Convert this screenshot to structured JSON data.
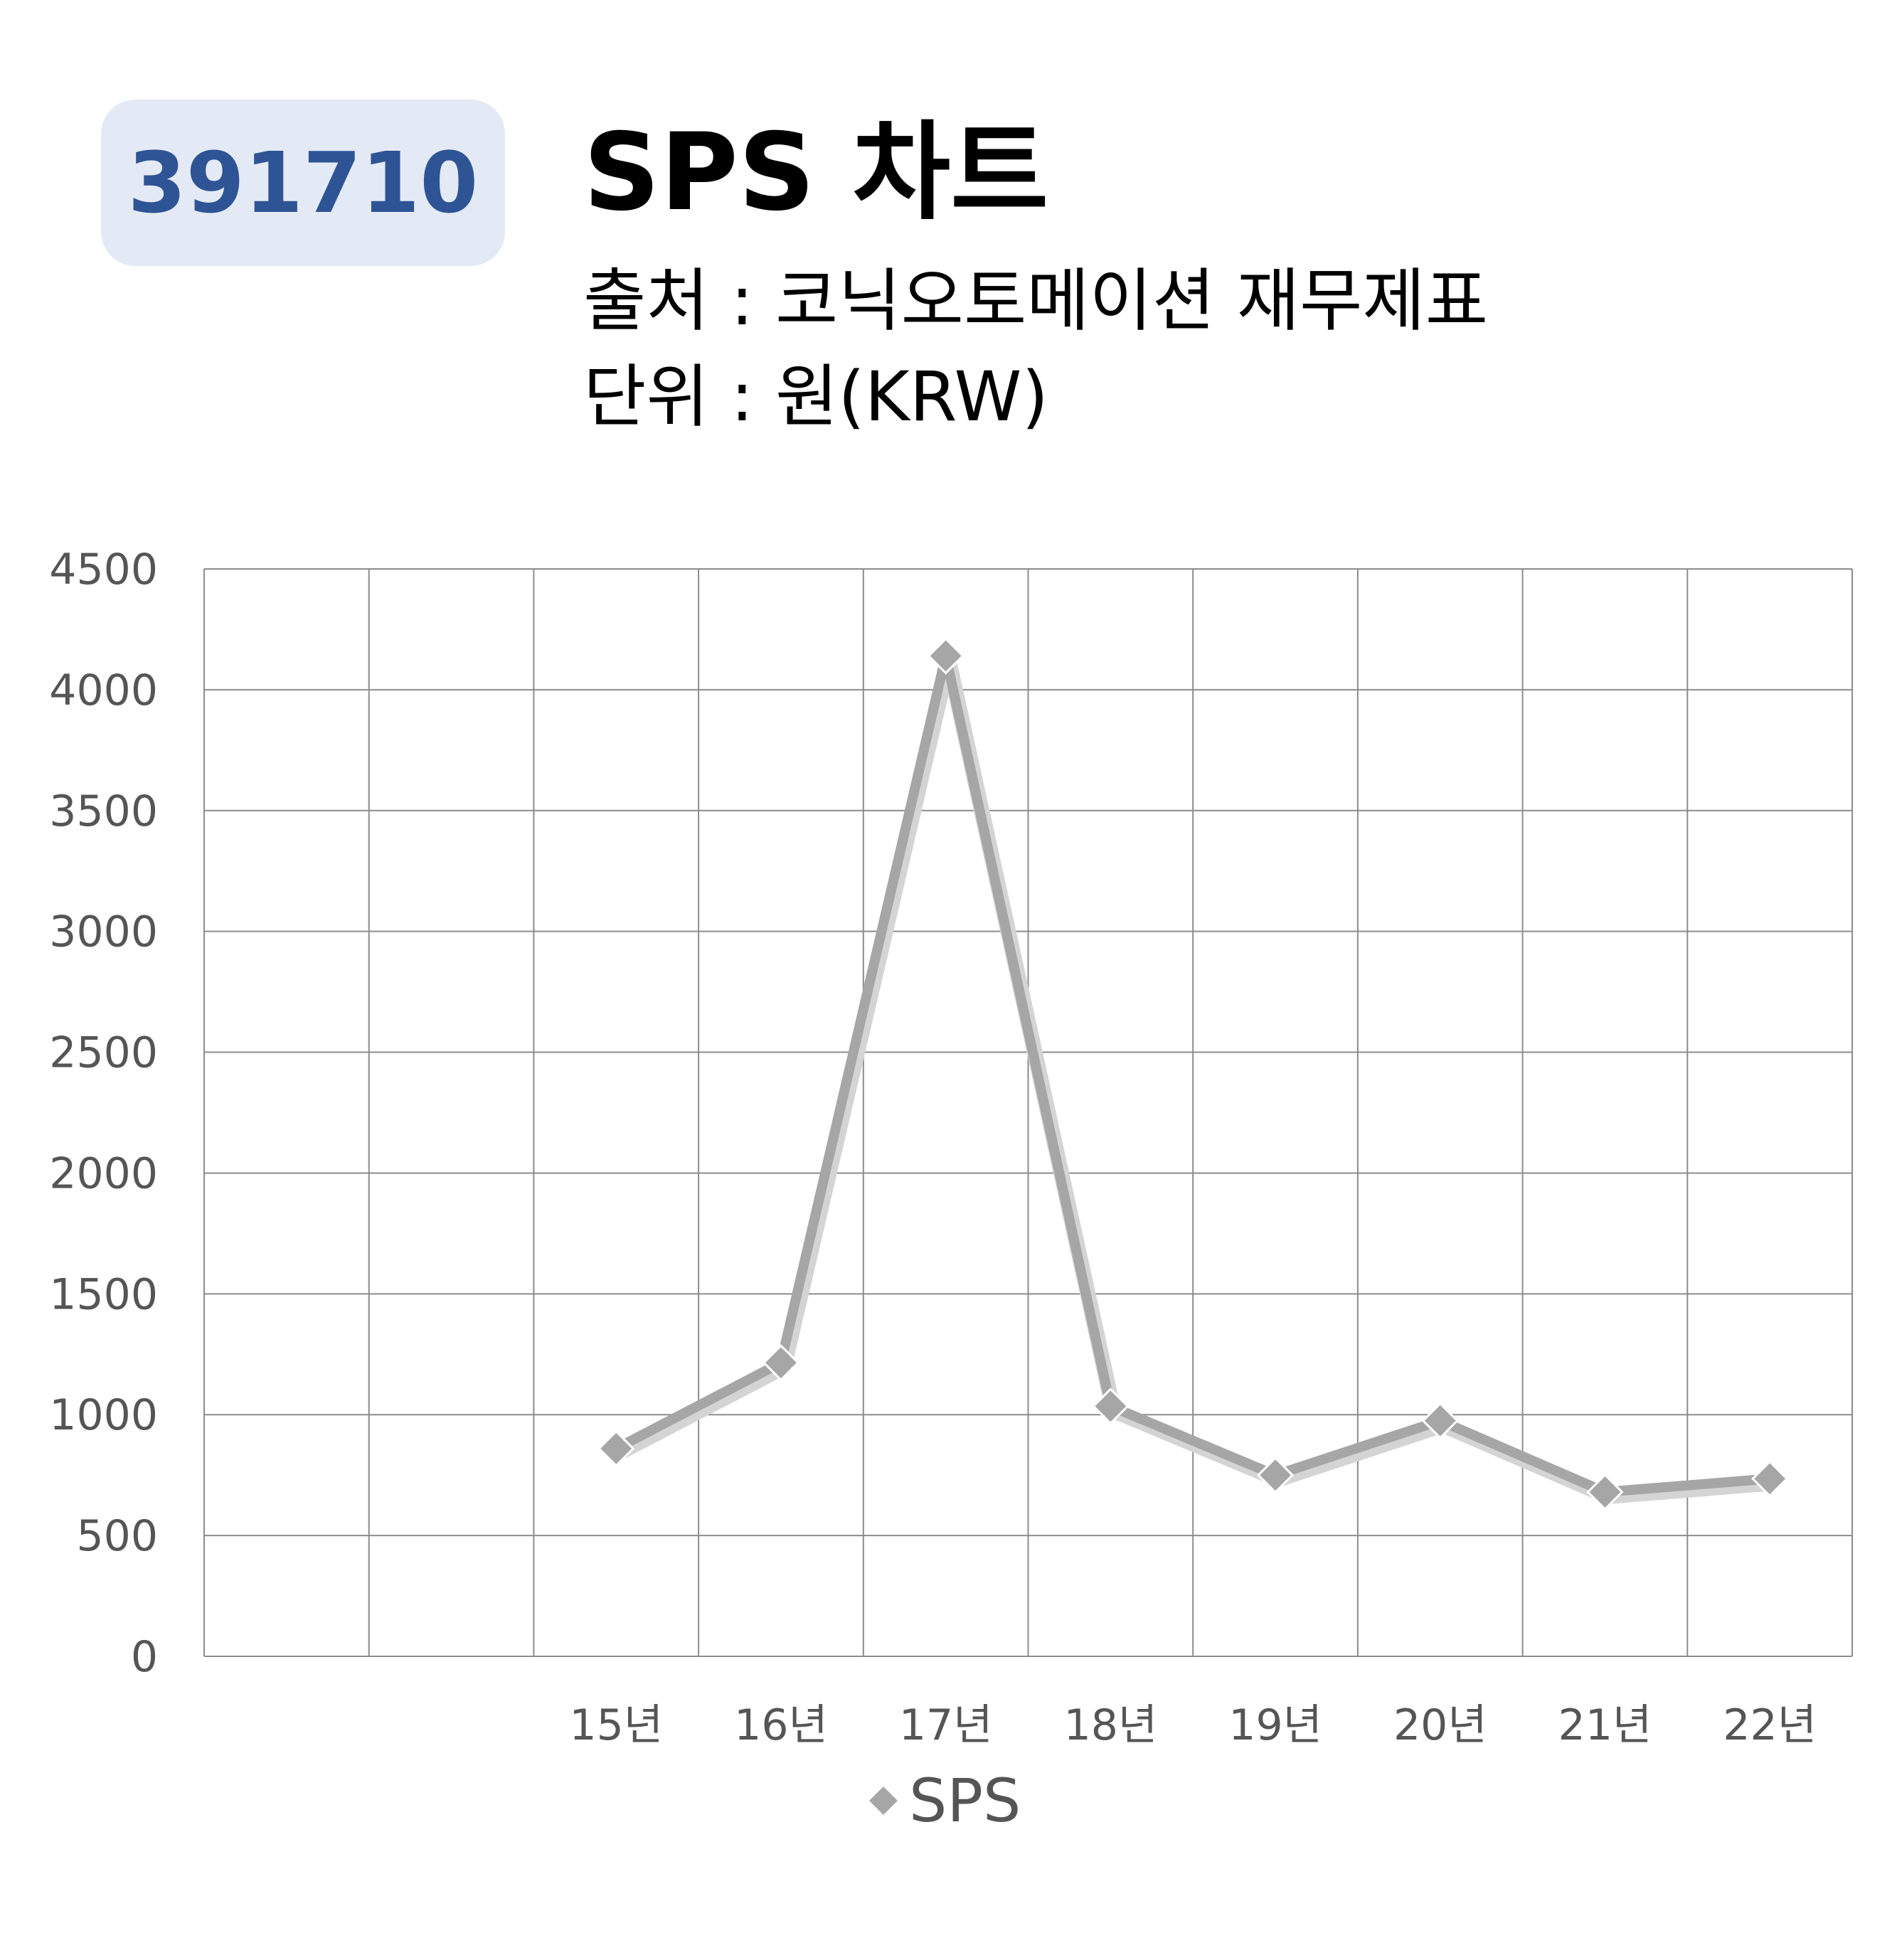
{
  "header": {
    "code": "391710",
    "title": "SPS 차트",
    "source": "출처 : 코닉오토메이션 재무제표",
    "unit": "단위 : 원(KRW)"
  },
  "colors": {
    "badge_bg": "#e4eaf5",
    "badge_text": "#2f5496",
    "series": "#a6a6a6",
    "grid": "#8c8c8c"
  },
  "chart_data": {
    "type": "line",
    "categories": [
      "",
      "",
      "15년",
      "16년",
      "17년",
      "18년",
      "19년",
      "20년",
      "21년",
      "22년"
    ],
    "series": [
      {
        "name": "SPS",
        "marker": "diamond",
        "values": [
          null,
          null,
          860,
          1215,
          4140,
          1035,
          750,
          975,
          680,
          735
        ]
      }
    ],
    "ylim": [
      0,
      4500
    ],
    "yticks": [
      0,
      500,
      1000,
      1500,
      2000,
      2500,
      3000,
      3500,
      4000,
      4500
    ],
    "grid": true,
    "legend": "bottom"
  }
}
